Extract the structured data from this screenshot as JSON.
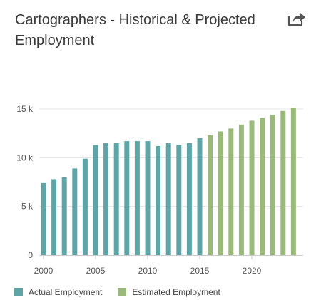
{
  "header": {
    "title": "Cartographers - Historical & Projected Employment",
    "share_icon": "share-icon"
  },
  "colors": {
    "actual": "#5fa5a8",
    "estimated": "#9ab97a",
    "grid": "#e4e4e4",
    "axis": "#cccccc"
  },
  "chart_data": {
    "type": "bar",
    "title": "Cartographers - Historical & Projected Employment",
    "xlabel": "",
    "ylabel": "",
    "ylim": [
      0,
      15000
    ],
    "yticks": [
      0,
      5000,
      10000,
      15000
    ],
    "ytick_labels": [
      "0",
      "5 k",
      "10 k",
      "15 k"
    ],
    "xticks": [
      2000,
      2005,
      2010,
      2015,
      2020
    ],
    "xtick_labels": [
      "2000",
      "2005",
      "2010",
      "2015",
      "2020"
    ],
    "grid": true,
    "legend_position": "bottom-left",
    "series": [
      {
        "name": "Actual Employment",
        "x": [
          2000,
          2001,
          2002,
          2003,
          2004,
          2005,
          2006,
          2007,
          2008,
          2009,
          2010,
          2011,
          2012,
          2013,
          2014,
          2015
        ],
        "values": [
          7400,
          7800,
          8000,
          8900,
          9900,
          11300,
          11500,
          11500,
          11700,
          11700,
          11700,
          11200,
          11500,
          11300,
          11500,
          12000
        ]
      },
      {
        "name": "Estimated Employment",
        "x": [
          2016,
          2017,
          2018,
          2019,
          2020,
          2021,
          2022,
          2023,
          2024
        ],
        "values": [
          12300,
          12700,
          13000,
          13400,
          13800,
          14100,
          14400,
          14800,
          15100
        ]
      }
    ]
  },
  "legend": {
    "items": [
      {
        "label": "Actual Employment"
      },
      {
        "label": "Estimated Employment"
      }
    ]
  }
}
